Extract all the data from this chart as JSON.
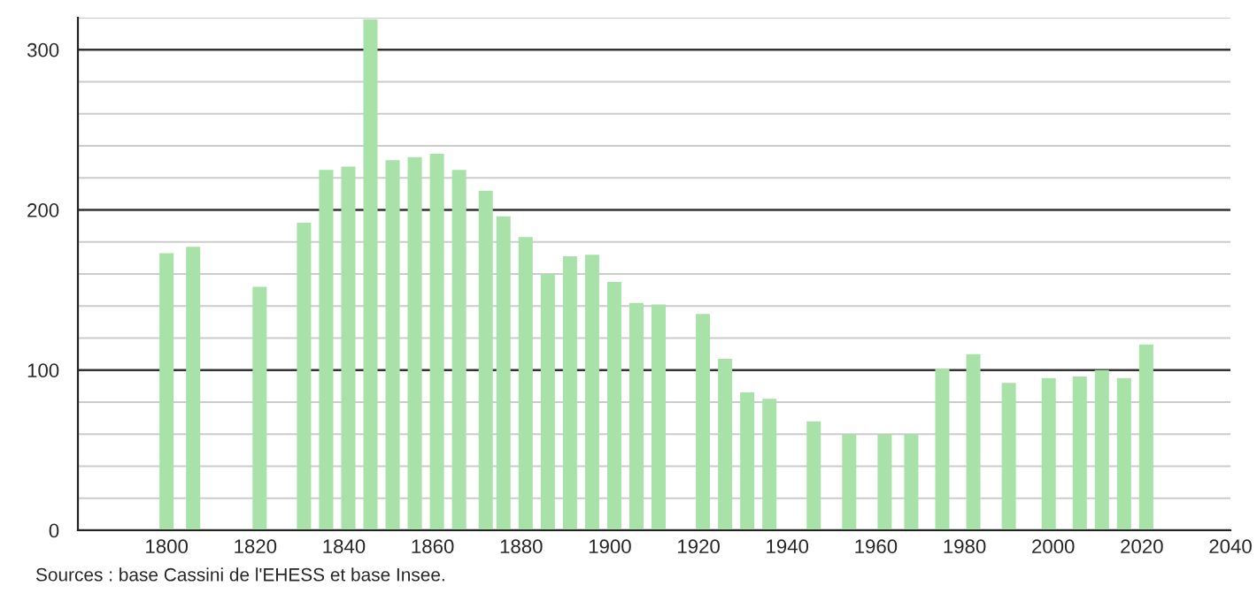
{
  "chart_data": {
    "type": "bar",
    "x": [
      1800,
      1806,
      1821,
      1831,
      1836,
      1841,
      1846,
      1851,
      1856,
      1861,
      1866,
      1872,
      1876,
      1881,
      1886,
      1891,
      1896,
      1901,
      1906,
      1911,
      1921,
      1926,
      1931,
      1936,
      1946,
      1954,
      1962,
      1968,
      1975,
      1982,
      1990,
      1999,
      2006,
      2011,
      2016,
      2021
    ],
    "values": [
      173,
      177,
      152,
      192,
      225,
      227,
      319,
      231,
      233,
      235,
      225,
      212,
      196,
      183,
      160,
      171,
      172,
      155,
      142,
      141,
      135,
      107,
      86,
      82,
      68,
      60,
      60,
      60,
      101,
      110,
      92,
      95,
      96,
      100,
      95,
      116
    ],
    "color": "#a8e2a8",
    "xlim": [
      1780,
      2040
    ],
    "xticks": [
      1800,
      1820,
      1840,
      1860,
      1880,
      1900,
      1920,
      1940,
      1960,
      1980,
      2000,
      2020,
      2040
    ],
    "ylim": [
      0,
      320
    ],
    "yticks": [
      0,
      {
        "value": 20,
        "label": null
      },
      {
        "value": 40,
        "label": null
      },
      {
        "value": 60,
        "label": null
      },
      {
        "value": 80,
        "label": null
      },
      100,
      {
        "value": 120,
        "label": null
      },
      {
        "value": 140,
        "label": null
      },
      {
        "value": 160,
        "label": null
      },
      {
        "value": 180,
        "label": null
      },
      200,
      {
        "value": 220,
        "label": null
      },
      {
        "value": 240,
        "label": null
      },
      {
        "value": 260,
        "label": null
      },
      {
        "value": 280,
        "label": null
      },
      300,
      {
        "value": 320,
        "label": null
      }
    ],
    "grid": "y",
    "annotations": [
      "Sources : base Cassini de l'EHESS et base Insee."
    ]
  }
}
